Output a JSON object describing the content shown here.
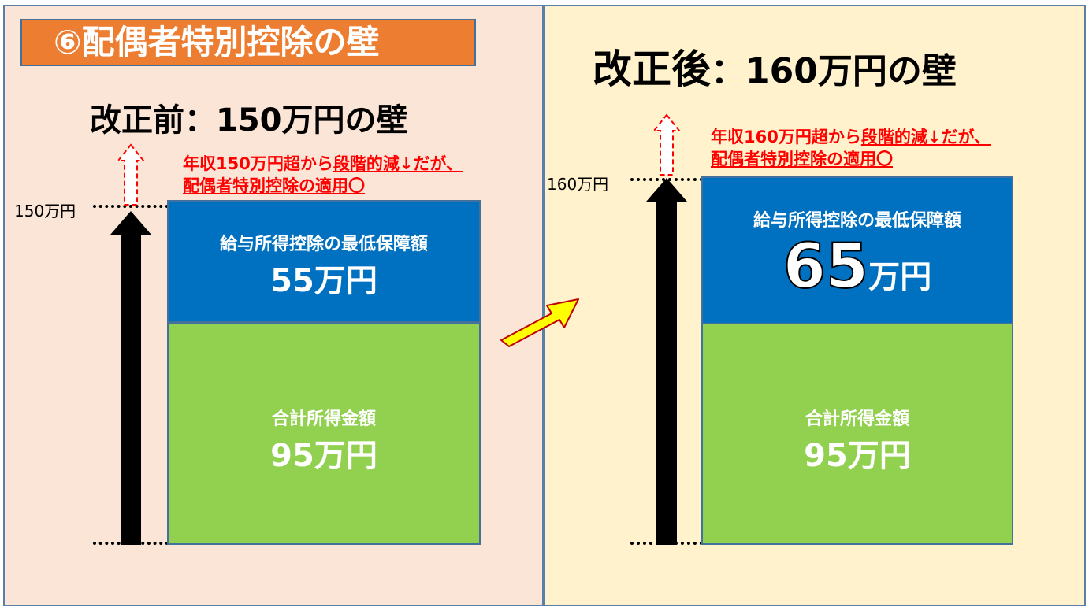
{
  "left": {
    "badge": "⑥配偶者特別控除の壁",
    "heading": "改正前：150万円の壁",
    "note": {
      "line1_pre": "年収150万円超から",
      "line1_ul": "段階的減↓だが、",
      "line2": "配偶者特別控除の適用〇"
    },
    "limit_label": "150万円",
    "upper_box": {
      "caption": "給与所得控除の最低保障額",
      "amount": "55万円"
    },
    "lower_box": {
      "caption": "合計所得金額",
      "amount": "95万円"
    }
  },
  "right": {
    "heading_bold": "改正後",
    "heading_rest": "：160万円の壁",
    "note": {
      "line1_pre": "年収160万円超から",
      "line1_ul": "段階的減↓だが、",
      "line2": "配偶者特別控除の適用〇"
    },
    "limit_label": "160万円",
    "upper_box": {
      "caption": "給与所得控除の最低保障額",
      "amount_num": "65",
      "amount_unit": "万円"
    },
    "lower_box": {
      "caption": "合計所得金額",
      "amount": "95万円"
    }
  },
  "colors": {
    "left_bg": "#fbe5d6",
    "right_bg": "#fff2cc",
    "badge": "#ed7d31",
    "blue_box": "#0070c0",
    "green_box": "#92d050",
    "note_red": "#ff0000",
    "transition_arrow": "#ffff00"
  },
  "icons": [
    "black-up-arrow-icon",
    "dashed-red-up-arrow-icon",
    "yellow-transition-arrow-icon"
  ]
}
